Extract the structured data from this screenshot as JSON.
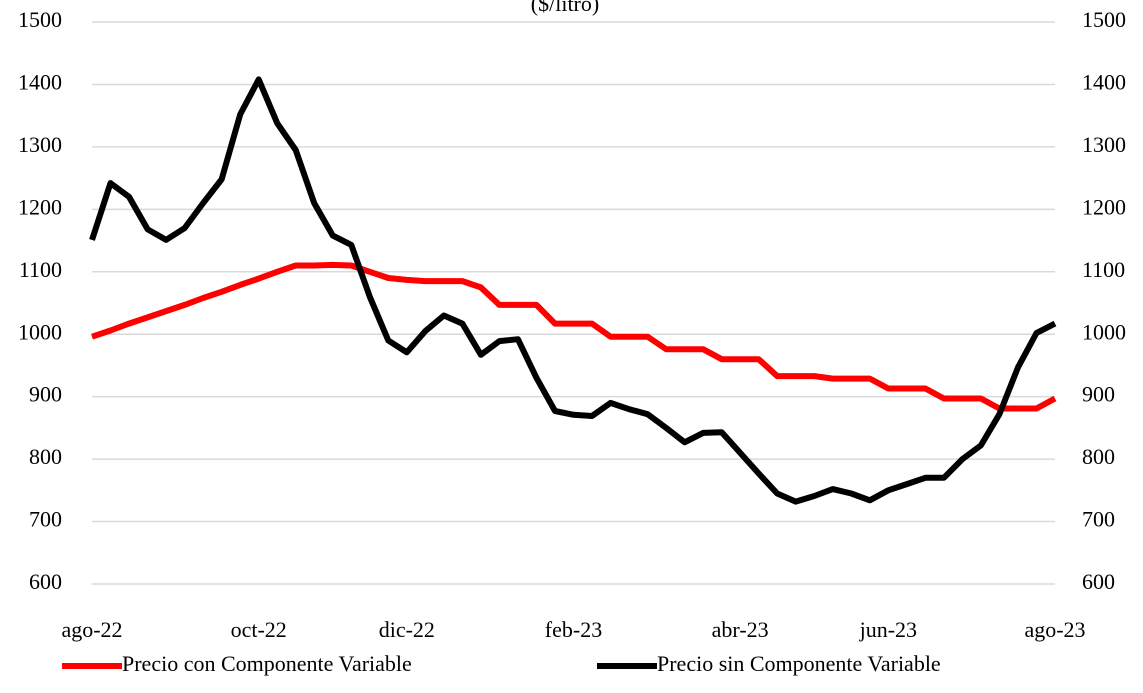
{
  "chart_data": {
    "type": "line",
    "title": "($/litro)",
    "categories": [
      "ago-22",
      null,
      null,
      null,
      null,
      null,
      null,
      null,
      null,
      "oct-22",
      null,
      null,
      null,
      null,
      null,
      null,
      null,
      "dic-22",
      null,
      null,
      null,
      null,
      null,
      null,
      null,
      null,
      "feb-23",
      null,
      null,
      null,
      null,
      null,
      null,
      null,
      null,
      "abr-23",
      null,
      null,
      null,
      null,
      null,
      null,
      null,
      "jun-23",
      null,
      null,
      null,
      null,
      null,
      null,
      null,
      null,
      "ago-23"
    ],
    "series": [
      {
        "name": "Precio con Componente Variable",
        "color": "#ff0000",
        "values": [
          996,
          1006,
          1017,
          1027,
          1037,
          1047,
          1058,
          1068,
          1079,
          1089,
          1100,
          1110,
          1110,
          1111,
          1110,
          1100,
          1090,
          1087,
          1085,
          1085,
          1085,
          1075,
          1047,
          1047,
          1047,
          1017,
          1017,
          1017,
          996,
          996,
          996,
          976,
          976,
          976,
          960,
          960,
          960,
          933,
          933,
          933,
          929,
          929,
          929,
          913,
          913,
          913,
          897,
          897,
          897,
          881,
          881,
          881,
          897
        ]
      },
      {
        "name": "Precio sin Componente Variable",
        "color": "#000000",
        "axis": "y2",
        "values": [
          1151,
          1242,
          1220,
          1168,
          1151,
          1170,
          1210,
          1248,
          1352,
          1408,
          1338,
          1295,
          1210,
          1158,
          1143,
          1060,
          990,
          971,
          1005,
          1030,
          1017,
          967,
          989,
          992,
          930,
          877,
          871,
          869,
          890,
          880,
          872,
          850,
          827,
          842,
          843,
          810,
          777,
          745,
          732,
          741,
          752,
          745,
          734,
          750,
          760,
          770,
          770,
          800,
          822,
          872,
          947,
          1002,
          1017
        ]
      }
    ],
    "ylim": [
      600,
      1500
    ],
    "yticks": [
      600,
      700,
      800,
      900,
      1000,
      1100,
      1200,
      1300,
      1400,
      1500
    ],
    "y2lim": [
      600,
      1500
    ],
    "y2ticks": [
      600,
      700,
      800,
      900,
      1000,
      1100,
      1200,
      1300,
      1400,
      1500
    ],
    "grid": true,
    "legend": "bottom"
  }
}
